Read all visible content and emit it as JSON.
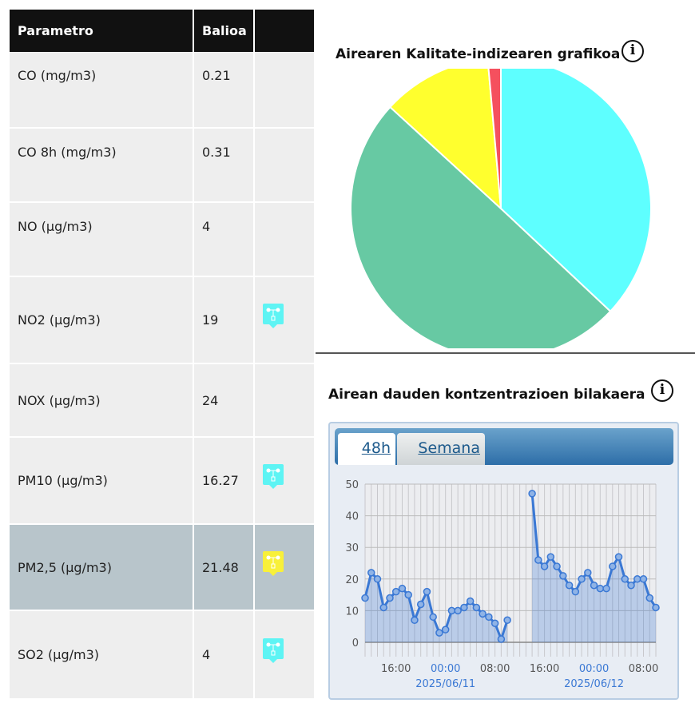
{
  "table": {
    "headers": [
      "Parametro",
      "Balioa",
      ""
    ],
    "rows": [
      {
        "param": "CO (mg/m3)",
        "value": "0.21",
        "marker": null
      },
      {
        "param": "CO 8h (mg/m3)",
        "value": "0.31",
        "marker": null
      },
      {
        "param": "NO (µg/m3)",
        "value": "4",
        "marker": null
      },
      {
        "param": "NO2 (µg/m3)",
        "value": "19",
        "marker": "#5ef4f4"
      },
      {
        "param": "NOX (µg/m3)",
        "value": "24",
        "marker": null
      },
      {
        "param": "PM10 (µg/m3)",
        "value": "16.27",
        "marker": "#5ef4f4"
      },
      {
        "param": "PM2,5 (µg/m3)",
        "value": "21.48",
        "marker": "#f8f03a",
        "highlight": true
      },
      {
        "param": "SO2 (µg/m3)",
        "value": "4",
        "marker": "#5ef4f4"
      }
    ]
  },
  "pie_section": {
    "title": "Airearen Kalitate-indizearen grafikoa",
    "info_icon": "i"
  },
  "line_section": {
    "title": "Airean dauden kontzentrazioen bilakaera",
    "info_icon": "i",
    "tabs": [
      "48h",
      "Semana"
    ],
    "active_tab": "48h"
  },
  "chart_data": [
    {
      "type": "pie",
      "slices": [
        {
          "color": "#5effff",
          "value": 37
        },
        {
          "color": "#67c9a3",
          "value": 49.8
        },
        {
          "color": "#ffff2e",
          "value": 11.8
        },
        {
          "color": "#f5505e",
          "value": 1.4
        }
      ]
    },
    {
      "type": "area",
      "ylim": [
        0,
        50
      ],
      "yticks": [
        0,
        10,
        20,
        30,
        40,
        50
      ],
      "x_start_hour": 11,
      "values": [
        14,
        22,
        20,
        11,
        14,
        16,
        17,
        15,
        7,
        12,
        16,
        8,
        3,
        4,
        10,
        10,
        11,
        13,
        11,
        9,
        8,
        6,
        1,
        7,
        null,
        null,
        null,
        47,
        26,
        24,
        27,
        24,
        21,
        18,
        16,
        20,
        22,
        18,
        17,
        17,
        24,
        27,
        20,
        18,
        20,
        20,
        14,
        11
      ],
      "xticks": [
        {
          "index": 5,
          "label": "16:00"
        },
        {
          "index": 13,
          "label": "00:00",
          "date": "2025/06/11"
        },
        {
          "index": 21,
          "label": "08:00"
        },
        {
          "index": 29,
          "label": "16:00"
        },
        {
          "index": 37,
          "label": "00:00",
          "date": "2025/06/12"
        },
        {
          "index": 45,
          "label": "08:00"
        }
      ],
      "color": "#3a78d4"
    }
  ]
}
